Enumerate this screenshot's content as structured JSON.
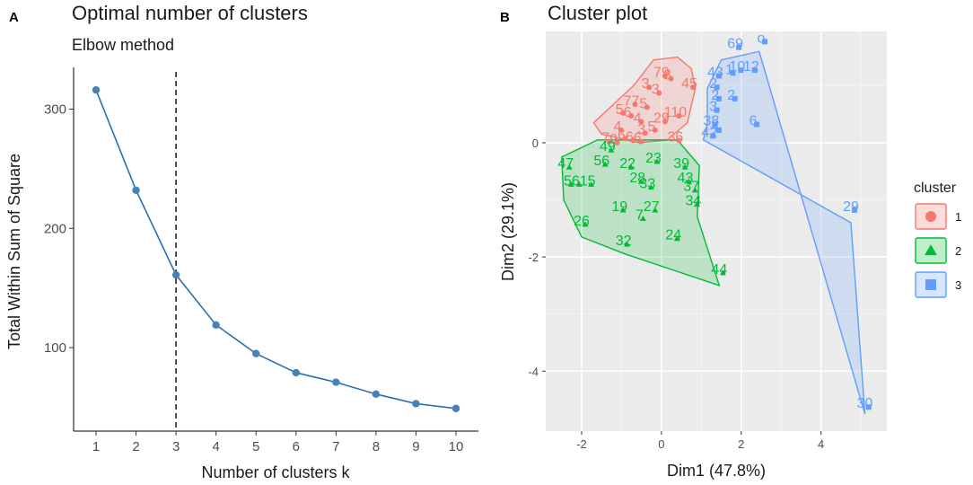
{
  "panel_labels": [
    "A",
    "B"
  ],
  "chart_data": [
    {
      "type": "line",
      "title": "Optimal number of clusters",
      "subtitle": "Elbow method",
      "xlabel": "Number of clusters k",
      "ylabel": "Total Within Sum of Square",
      "categories": [
        "1",
        "2",
        "3",
        "4",
        "5",
        "6",
        "7",
        "8",
        "9",
        "10"
      ],
      "values": [
        316,
        232,
        161,
        119,
        95,
        79,
        71,
        61,
        53,
        49
      ],
      "ylim": [
        30,
        335
      ],
      "yticks": [
        "100",
        "200",
        "300"
      ],
      "vline_at": "3",
      "line_color": "#2e6fad",
      "point_color": "#4682b4"
    },
    {
      "type": "scatter",
      "title": "Cluster plot",
      "xlabel": "Dim1 (47.8%)",
      "ylabel": "Dim2 (29.1%)",
      "xlim": [
        -2.9,
        5.65
      ],
      "ylim": [
        -5.05,
        1.95
      ],
      "xticks": [
        "-2",
        "0",
        "2",
        "4"
      ],
      "yticks": [
        "-4",
        "-2",
        "0"
      ],
      "legend_title": "cluster",
      "legend_position": "right",
      "series": [
        {
          "name": "1",
          "color": "#f8766d",
          "hull": [
            [
              -0.7,
              1.0
            ],
            [
              -0.2,
              1.45
            ],
            [
              0.4,
              1.5
            ],
            [
              0.75,
              1.3
            ],
            [
              0.85,
              0.95
            ],
            [
              0.65,
              0.35
            ],
            [
              0.15,
              0.05
            ],
            [
              -0.55,
              0.0
            ],
            [
              -1.5,
              0.15
            ],
            [
              -1.7,
              0.35
            ]
          ],
          "points": [
            {
              "x": 0.0,
              "y": 1.25,
              "label": "79"
            },
            {
              "x": 0.15,
              "y": 1.2,
              "label": "3"
            },
            {
              "x": 0.7,
              "y": 1.05,
              "label": "45"
            },
            {
              "x": -0.4,
              "y": 1.05,
              "label": "3"
            },
            {
              "x": -0.15,
              "y": 0.95,
              "label": "3"
            },
            {
              "x": -0.75,
              "y": 0.75,
              "label": "77"
            },
            {
              "x": -0.45,
              "y": 0.7,
              "label": "5"
            },
            {
              "x": -1.05,
              "y": 0.6,
              "label": "5"
            },
            {
              "x": -0.85,
              "y": 0.55,
              "label": "6"
            },
            {
              "x": 0.35,
              "y": 0.55,
              "label": "110"
            },
            {
              "x": -0.6,
              "y": 0.45,
              "label": "4"
            },
            {
              "x": 0.0,
              "y": 0.45,
              "label": "29"
            },
            {
              "x": -1.1,
              "y": 0.3,
              "label": "4"
            },
            {
              "x": -0.5,
              "y": 0.25,
              "label": "3"
            },
            {
              "x": -0.25,
              "y": 0.3,
              "label": "5"
            },
            {
              "x": -1.0,
              "y": 0.15,
              "label": "6"
            },
            {
              "x": -0.8,
              "y": 0.12,
              "label": "6"
            },
            {
              "x": -0.6,
              "y": 0.1,
              "label": "6"
            },
            {
              "x": 0.35,
              "y": 0.12,
              "label": "36"
            },
            {
              "x": -1.4,
              "y": 0.1,
              "label": "7"
            },
            {
              "x": -1.2,
              "y": 0.08,
              "label": "9"
            }
          ]
        },
        {
          "name": "2",
          "color": "#00ba38",
          "hull": [
            [
              -2.5,
              -0.25
            ],
            [
              -1.6,
              0.05
            ],
            [
              0.4,
              0.05
            ],
            [
              0.95,
              -0.4
            ],
            [
              0.9,
              -1.3
            ],
            [
              1.45,
              -2.5
            ],
            [
              -0.9,
              -1.95
            ],
            [
              -2.0,
              -1.65
            ],
            [
              -2.45,
              -1.0
            ]
          ],
          "points": [
            {
              "x": -1.35,
              "y": -0.05,
              "label": "49"
            },
            {
              "x": -1.5,
              "y": -0.3,
              "label": "56"
            },
            {
              "x": -2.4,
              "y": -0.35,
              "label": "47"
            },
            {
              "x": -2.35,
              "y": -0.65,
              "label": "5"
            },
            {
              "x": -2.15,
              "y": -0.65,
              "label": "6"
            },
            {
              "x": -1.85,
              "y": -0.65,
              "label": "15"
            },
            {
              "x": -0.85,
              "y": -0.35,
              "label": "22"
            },
            {
              "x": -0.2,
              "y": -0.25,
              "label": "23"
            },
            {
              "x": 0.5,
              "y": -0.35,
              "label": "39"
            },
            {
              "x": -0.6,
              "y": -0.6,
              "label": "28"
            },
            {
              "x": -0.35,
              "y": -0.7,
              "label": "33"
            },
            {
              "x": 0.6,
              "y": -0.6,
              "label": "43"
            },
            {
              "x": 0.75,
              "y": -0.75,
              "label": "37"
            },
            {
              "x": 0.8,
              "y": -1.0,
              "label": "34"
            },
            {
              "x": -1.05,
              "y": -1.1,
              "label": "19"
            },
            {
              "x": -0.25,
              "y": -1.1,
              "label": "27"
            },
            {
              "x": -0.55,
              "y": -1.25,
              "label": "7"
            },
            {
              "x": -2.0,
              "y": -1.35,
              "label": "26"
            },
            {
              "x": 0.3,
              "y": -1.6,
              "label": "24"
            },
            {
              "x": -0.95,
              "y": -1.7,
              "label": "32"
            },
            {
              "x": 1.45,
              "y": -2.2,
              "label": "44"
            }
          ]
        },
        {
          "name": "3",
          "color": "#619cff",
          "hull": [
            [
              2.45,
              1.6
            ],
            [
              1.5,
              1.45
            ],
            [
              1.15,
              0.95
            ],
            [
              1.15,
              0.35
            ],
            [
              1.05,
              0.05
            ],
            [
              4.75,
              -1.4
            ],
            [
              5.1,
              -4.75
            ]
          ],
          "points": [
            {
              "x": 2.5,
              "y": 1.85,
              "label": "o"
            },
            {
              "x": 1.85,
              "y": 1.75,
              "label": "69"
            },
            {
              "x": 1.9,
              "y": 1.35,
              "label": "10"
            },
            {
              "x": 2.25,
              "y": 1.35,
              "label": "12"
            },
            {
              "x": 1.7,
              "y": 1.3,
              "label": "1"
            },
            {
              "x": 1.35,
              "y": 1.25,
              "label": "43"
            },
            {
              "x": 1.3,
              "y": 1.05,
              "label": "2"
            },
            {
              "x": 1.35,
              "y": 0.85,
              "label": "2"
            },
            {
              "x": 1.75,
              "y": 0.85,
              "label": "2"
            },
            {
              "x": 1.3,
              "y": 0.65,
              "label": "3"
            },
            {
              "x": 1.25,
              "y": 0.4,
              "label": "38"
            },
            {
              "x": 1.35,
              "y": 0.3,
              "label": "4"
            },
            {
              "x": 1.2,
              "y": 0.2,
              "label": "42"
            },
            {
              "x": 2.3,
              "y": 0.4,
              "label": "6"
            },
            {
              "x": 4.75,
              "y": -1.1,
              "label": "29"
            },
            {
              "x": 5.1,
              "y": -4.55,
              "label": "30"
            }
          ]
        }
      ]
    }
  ]
}
